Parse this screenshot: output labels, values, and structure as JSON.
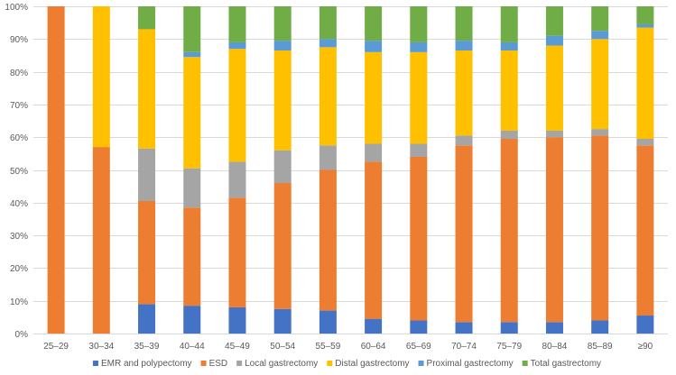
{
  "chart_data": {
    "type": "bar",
    "stacked": true,
    "percent": true,
    "title": "",
    "xlabel": "",
    "ylabel": "",
    "ylim": [
      0,
      100
    ],
    "y_ticks": [
      "0%",
      "10%",
      "20%",
      "30%",
      "40%",
      "50%",
      "60%",
      "70%",
      "80%",
      "90%",
      "100%"
    ],
    "y_tick_values": [
      0,
      10,
      20,
      30,
      40,
      50,
      60,
      70,
      80,
      90,
      100
    ],
    "grid": true,
    "legend_position": "bottom",
    "categories": [
      "25–29",
      "30–34",
      "35–39",
      "40–44",
      "45–49",
      "50–54",
      "55–59",
      "60–64",
      "65–69",
      "70–74",
      "75–79",
      "80–84",
      "85–89",
      "≥90"
    ],
    "series": [
      {
        "name": "EMR and polypectomy",
        "color": "#4472c4",
        "values": [
          0,
          0,
          9,
          8.5,
          8,
          7.5,
          7,
          4.5,
          4,
          3.5,
          3.5,
          3.5,
          4,
          5.5
        ]
      },
      {
        "name": "ESD",
        "color": "#ed7d31",
        "values": [
          100,
          57,
          31.5,
          30,
          33.5,
          38.5,
          43,
          48,
          50,
          54,
          56,
          56.5,
          56.5,
          52
        ]
      },
      {
        "name": "Local gastrectomy",
        "color": "#a5a5a5",
        "values": [
          0,
          0,
          16,
          12,
          11,
          10,
          7.5,
          5.5,
          4,
          3,
          2.5,
          2,
          2,
          2
        ]
      },
      {
        "name": "Distal gastrectomy",
        "color": "#ffc000",
        "values": [
          0,
          43,
          36.5,
          34,
          34.5,
          30.5,
          30,
          28,
          28,
          26,
          24.5,
          26,
          27.5,
          34
        ]
      },
      {
        "name": "Proximal gastrectomy",
        "color": "#5b9bd5",
        "values": [
          0,
          0,
          0,
          1.5,
          2,
          3,
          2.5,
          3.5,
          3,
          3,
          2.5,
          3,
          2.5,
          1
        ]
      },
      {
        "name": "Total gastrectomy",
        "color": "#70ad47",
        "values": [
          0,
          0,
          7,
          14,
          11,
          10.5,
          10,
          10.5,
          11,
          10.5,
          11,
          9,
          7.5,
          5.5
        ]
      }
    ]
  }
}
